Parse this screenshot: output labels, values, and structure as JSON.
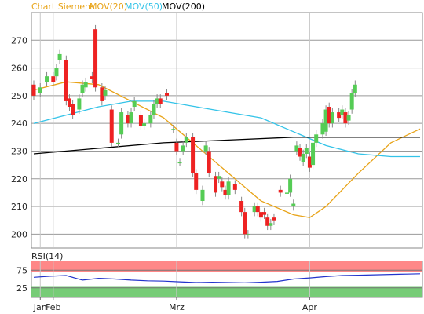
{
  "header": {
    "title": "Chart Siemens",
    "legend": [
      {
        "label": "MOV(20)",
        "color": "#e8a317"
      },
      {
        "label": "MOV(50)",
        "color": "#33c3e8"
      },
      {
        "label": "MOV(200)",
        "color": "#000000"
      }
    ]
  },
  "rsi_label": "RSI(14)",
  "colors": {
    "up": "#55cc55",
    "down": "#ee2222",
    "rsi_line": "#2233cc",
    "overbought_band": "#ff8888",
    "oversold_band": "#77cc77"
  },
  "chart_data": [
    {
      "type": "candlestick",
      "title": "Chart Siemens",
      "ylim": [
        195,
        280
      ],
      "y_ticks": [
        200,
        210,
        220,
        230,
        240,
        250,
        260,
        270
      ],
      "x_tick_labels": [
        "Jan",
        "Feb",
        "Mrz",
        "Apr"
      ],
      "x_tick_index": [
        2,
        6,
        44,
        85
      ],
      "n_sessions": 120,
      "grid": true,
      "candles": [
        [
          0,
          254,
          250
        ],
        [
          2,
          251,
          253
        ],
        [
          4,
          255,
          257
        ],
        [
          6,
          257,
          255
        ],
        [
          7,
          257,
          260
        ],
        [
          8,
          263,
          265
        ],
        [
          10,
          263,
          248
        ],
        [
          11,
          249,
          246
        ],
        [
          12,
          247,
          243
        ],
        [
          14,
          245,
          249
        ],
        [
          15,
          251,
          254
        ],
        [
          16,
          253,
          255
        ],
        [
          18,
          257,
          256
        ],
        [
          19,
          274,
          253
        ],
        [
          21,
          253,
          248
        ],
        [
          22,
          250,
          252
        ],
        [
          24,
          245,
          233
        ],
        [
          26,
          233,
          233
        ],
        [
          27,
          236,
          244
        ],
        [
          29,
          243,
          240
        ],
        [
          30,
          240,
          244
        ],
        [
          31,
          246,
          248
        ],
        [
          33,
          243,
          239
        ],
        [
          34,
          239,
          240
        ],
        [
          36,
          240,
          243
        ],
        [
          37,
          243,
          247
        ],
        [
          38,
          247,
          249
        ],
        [
          39,
          249,
          247
        ],
        [
          41,
          251,
          250
        ],
        [
          43,
          238,
          238
        ],
        [
          44,
          233,
          230
        ],
        [
          45,
          226,
          226
        ],
        [
          46,
          230,
          232
        ],
        [
          47,
          233,
          235
        ],
        [
          49,
          235,
          222
        ],
        [
          50,
          222,
          216
        ],
        [
          52,
          212,
          216
        ],
        [
          53,
          230,
          232
        ],
        [
          54,
          230,
          222
        ],
        [
          56,
          221,
          215
        ],
        [
          57,
          220,
          221
        ],
        [
          58,
          219,
          217
        ],
        [
          59,
          216,
          214
        ],
        [
          60,
          214,
          219
        ],
        [
          62,
          218,
          216
        ],
        [
          64,
          212,
          208
        ],
        [
          65,
          208,
          200
        ],
        [
          66,
          200,
          200
        ],
        [
          68,
          208,
          210
        ],
        [
          69,
          210,
          208
        ],
        [
          70,
          208,
          206
        ],
        [
          71,
          208,
          207
        ],
        [
          72,
          206,
          203
        ],
        [
          73,
          203,
          204
        ],
        [
          74,
          206,
          205
        ],
        [
          76,
          216,
          215
        ],
        [
          78,
          215,
          215
        ],
        [
          79,
          215,
          220
        ],
        [
          80,
          210,
          211
        ],
        [
          81,
          230,
          232
        ],
        [
          82,
          231,
          228
        ],
        [
          83,
          226,
          229
        ],
        [
          84,
          229,
          231
        ],
        [
          85,
          228,
          224
        ],
        [
          86,
          225,
          233
        ],
        [
          87,
          233,
          236
        ],
        [
          89,
          236,
          240
        ],
        [
          90,
          237,
          245
        ],
        [
          91,
          246,
          240
        ],
        [
          92,
          240,
          244
        ],
        [
          94,
          244,
          242
        ],
        [
          95,
          243,
          245
        ],
        [
          96,
          244,
          240
        ],
        [
          97,
          241,
          243
        ],
        [
          98,
          245,
          251
        ],
        [
          99,
          251,
          254
        ]
      ],
      "series": [
        {
          "name": "MOV(20)",
          "x": [
            0,
            10,
            20,
            30,
            40,
            50,
            60,
            70,
            80,
            85,
            90,
            100,
            110,
            119
          ],
          "y": [
            252,
            255,
            254,
            248,
            242,
            232,
            222,
            212,
            207,
            206,
            210,
            222,
            233,
            238
          ]
        },
        {
          "name": "MOV(50)",
          "x": [
            0,
            10,
            20,
            30,
            40,
            50,
            60,
            70,
            80,
            90,
            100,
            110,
            119
          ],
          "y": [
            240,
            243,
            246,
            248,
            248,
            246,
            244,
            242,
            237,
            232,
            229,
            228,
            228
          ]
        },
        {
          "name": "MOV(200)",
          "x": [
            0,
            20,
            40,
            60,
            80,
            100,
            119
          ],
          "y": [
            229,
            231,
            233,
            234,
            235,
            235,
            235
          ]
        }
      ]
    },
    {
      "type": "line",
      "title": "RSI(14)",
      "ylim": [
        0,
        100
      ],
      "y_ticks": [
        25,
        75
      ],
      "bands": [
        {
          "from": 70,
          "to": 100,
          "name": "overbought"
        },
        {
          "from": 0,
          "to": 30,
          "name": "oversold"
        }
      ],
      "series": [
        {
          "name": "RSI(14)",
          "x": [
            0,
            5,
            10,
            15,
            20,
            25,
            30,
            35,
            40,
            45,
            50,
            55,
            60,
            65,
            70,
            75,
            80,
            85,
            90,
            95,
            100,
            105,
            110,
            115,
            119
          ],
          "y": [
            55,
            58,
            60,
            47,
            52,
            50,
            47,
            45,
            44,
            42,
            40,
            41,
            40,
            39,
            41,
            43,
            50,
            53,
            57,
            60,
            61,
            62,
            63,
            64,
            65
          ]
        }
      ]
    }
  ]
}
